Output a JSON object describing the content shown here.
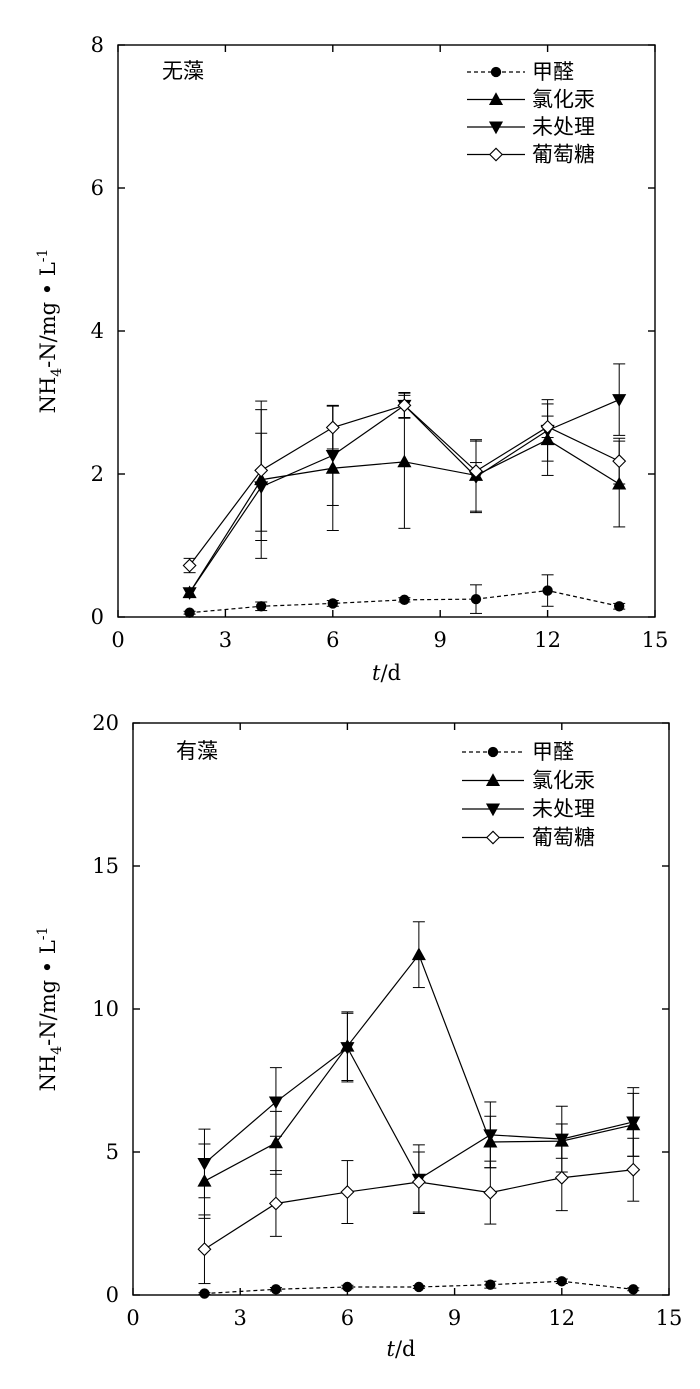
{
  "chart_data": [
    {
      "type": "line",
      "title": "",
      "panel_label": "无藻",
      "xlabel": "t/d",
      "ylabel": "NH4-N/mg • L-1",
      "ylabel_parts": {
        "main": "NH",
        "subscript": "4",
        "middle": "-N/mg • L",
        "superscript": "-1"
      },
      "xlim": [
        0,
        15
      ],
      "ylim": [
        0,
        8
      ],
      "x_ticks": [
        0,
        3,
        6,
        9,
        12,
        15
      ],
      "y_ticks": [
        0,
        2,
        4,
        6,
        8
      ],
      "legend_position": "top-right",
      "grid": false,
      "x": [
        2,
        4,
        6,
        8,
        10,
        12,
        14
      ],
      "series": [
        {
          "name": "甲醛",
          "marker": "circle",
          "line_style": "dashed",
          "values": [
            0.06,
            0.15,
            0.19,
            0.24,
            0.25,
            0.37,
            0.15
          ],
          "errors": [
            0.02,
            0.06,
            0.04,
            0.03,
            0.2,
            0.22,
            0.04
          ]
        },
        {
          "name": "氯化汞",
          "marker": "triangle-up",
          "line_style": "solid",
          "values": [
            0.34,
            1.92,
            2.08,
            2.17,
            1.98,
            2.48,
            1.86
          ],
          "errors": [
            0.06,
            1.1,
            0.87,
            0.93,
            0.5,
            0.5,
            0.6
          ]
        },
        {
          "name": "未处理",
          "marker": "triangle-down",
          "line_style": "solid",
          "values": [
            0.34,
            1.82,
            2.26,
            2.96,
            1.96,
            2.61,
            3.04
          ],
          "errors": [
            0.06,
            0.75,
            0.7,
            0.17,
            0.5,
            0.43,
            0.5
          ]
        },
        {
          "name": "葡萄糖",
          "marker": "diamond",
          "line_style": "solid",
          "values": [
            0.72,
            2.05,
            2.65,
            2.96,
            2.04,
            2.66,
            2.18
          ],
          "errors": [
            0.1,
            0.85,
            0.3,
            0.18,
            0.12,
            0.15,
            0.32
          ]
        }
      ]
    },
    {
      "type": "line",
      "title": "",
      "panel_label": "有藻",
      "xlabel": "t/d",
      "ylabel": "NH4-N/mg • L-1",
      "ylabel_parts": {
        "main": "NH",
        "subscript": "4",
        "middle": "-N/mg • L",
        "superscript": "-1"
      },
      "xlim": [
        0,
        15
      ],
      "ylim": [
        0,
        20
      ],
      "x_ticks": [
        0,
        3,
        6,
        9,
        12,
        15
      ],
      "y_ticks": [
        0,
        5,
        10,
        15,
        20
      ],
      "legend_position": "top-right",
      "grid": false,
      "x": [
        2,
        4,
        6,
        8,
        10,
        12,
        14
      ],
      "series": [
        {
          "name": "甲醛",
          "marker": "circle",
          "line_style": "dashed",
          "values": [
            0.05,
            0.2,
            0.28,
            0.28,
            0.36,
            0.48,
            0.2
          ],
          "errors": [
            0.03,
            0.06,
            0.06,
            0.05,
            0.12,
            0.08,
            0.05
          ]
        },
        {
          "name": "氯化汞",
          "marker": "triangle-up",
          "line_style": "solid",
          "values": [
            3.98,
            5.32,
            8.7,
            11.9,
            5.35,
            5.38,
            5.95
          ],
          "errors": [
            1.3,
            1.1,
            1.2,
            1.15,
            0.9,
            0.6,
            1.1
          ]
        },
        {
          "name": "未处理",
          "marker": "triangle-down",
          "line_style": "solid",
          "values": [
            4.6,
            6.75,
            8.65,
            4.05,
            5.6,
            5.45,
            6.05
          ],
          "errors": [
            1.2,
            1.2,
            1.2,
            1.2,
            1.15,
            1.15,
            1.2
          ]
        },
        {
          "name": "葡萄糖",
          "marker": "diamond",
          "line_style": "solid",
          "values": [
            1.6,
            3.2,
            3.6,
            3.95,
            3.58,
            4.1,
            4.38
          ],
          "errors": [
            1.2,
            1.15,
            1.1,
            1.05,
            1.1,
            1.15,
            1.1
          ]
        }
      ]
    }
  ]
}
